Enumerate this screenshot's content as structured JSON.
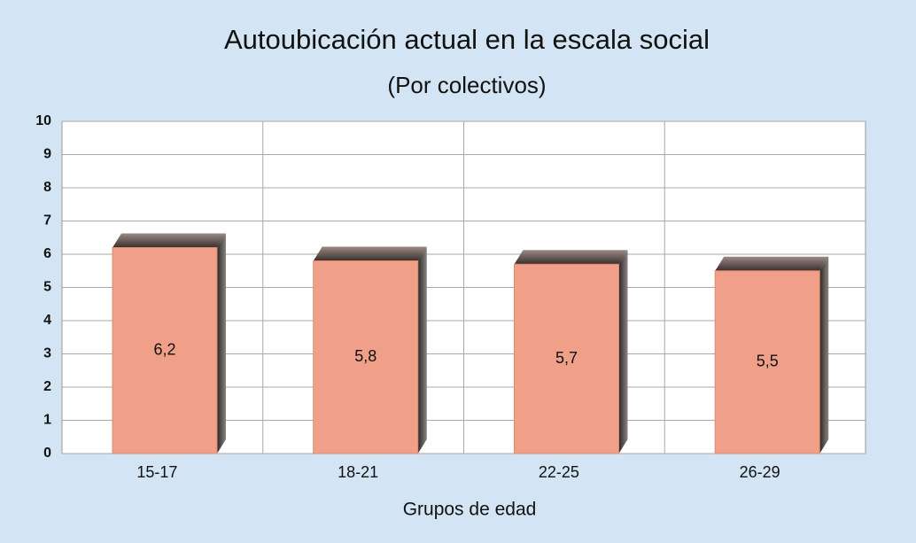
{
  "chart_data": {
    "type": "bar",
    "title": "Autoubicación actual en la escala social",
    "subtitle": "(Por colectivos)",
    "categories": [
      "15-17",
      "18-21",
      "22-25",
      "26-29"
    ],
    "values": [
      6.2,
      5.8,
      5.7,
      5.5
    ],
    "value_labels": [
      "6,2",
      "5,8",
      "5,7",
      "5,5"
    ],
    "color": "#f0a088",
    "xlabel": "Grupos de edad",
    "ylim": [
      0,
      10
    ],
    "yticks": [
      0,
      1,
      2,
      3,
      4,
      5,
      6,
      7,
      8,
      9,
      10
    ],
    "grid": true
  }
}
